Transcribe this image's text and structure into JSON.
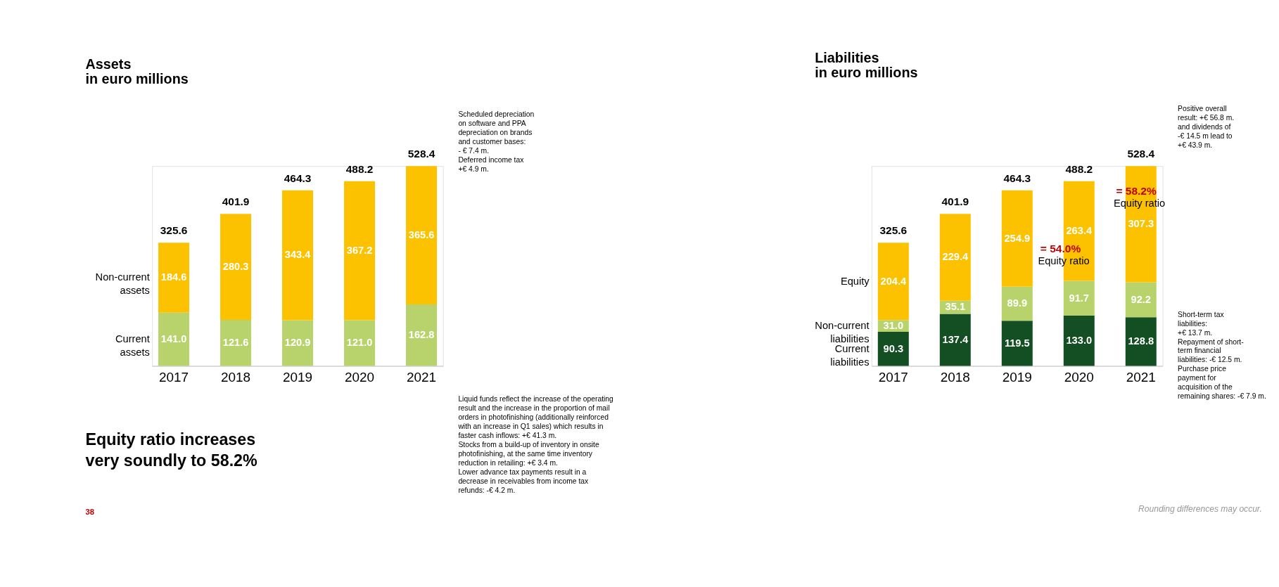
{
  "chart_data": [
    {
      "type": "bar",
      "title": "Assets\nin euro millions",
      "stacked": true,
      "categories": [
        "2017",
        "2018",
        "2019",
        "2020",
        "2021"
      ],
      "series": [
        {
          "name": "Current\nassets",
          "color": "#b8d36b",
          "values": [
            141.0,
            121.6,
            120.9,
            121.0,
            162.8
          ],
          "value_labels": [
            "141.0",
            "121.6",
            "120.9",
            "121.0",
            "162.8"
          ]
        },
        {
          "name": "Non-current\nassets",
          "color": "#fcc200",
          "values": [
            184.6,
            280.3,
            343.4,
            367.2,
            365.6
          ],
          "value_labels": [
            "184.6",
            "280.3",
            "343.4",
            "367.2",
            "365.6"
          ]
        }
      ],
      "totals": [
        "325.6",
        "401.9",
        "464.3",
        "488.2",
        "528.4"
      ],
      "annotations": [
        "Scheduled depreciation\non software and PPA\ndepreciation on brands\nand  customer bases:\n- € 7.4 m.\n\nDeferred income tax\n+€ 4.9 m.",
        "Liquid funds reflect the increase of the operating\nresult and the increase in the proportion of mail\norders in photofinishing (additionally reinforced\nwith an increase in Q1 sales) which results in\nfaster cash inflows: +€ 41.3 m.\n\nStocks from a build-up of inventory in onsite\nphotofinishing, at the same time inventory\nreduction in retailing: +€ 3.4 m.\n\nLower advance tax payments result in a\ndecrease in receivables from income tax\nrefunds: -€ 4.2 m.",
        "Equity ratio increases\nvery soundly to 58.2%",
        "38"
      ]
    },
    {
      "type": "bar",
      "title": "Liabilities\nin euro millions",
      "stacked": true,
      "categories": [
        "2017",
        "2018",
        "2019",
        "2020",
        "2021"
      ],
      "series": [
        {
          "name": "Current\nliabilities",
          "color": "#144f23",
          "values": [
            90.3,
            137.4,
            119.5,
            133.0,
            128.8
          ],
          "value_labels": [
            "90.3",
            "137.4",
            "119.5",
            "133.0",
            "128.8"
          ]
        },
        {
          "name": "Non-current\nliabilities",
          "color": "#b8d36b",
          "values": [
            31.0,
            35.1,
            89.9,
            91.7,
            92.2
          ],
          "value_labels": [
            "31.0",
            "35.1",
            "89.9",
            "91.7",
            "92.2"
          ]
        },
        {
          "name": "Equity",
          "color": "#fcc200",
          "values": [
            204.4,
            229.4,
            254.9,
            263.4,
            307.3
          ],
          "value_labels": [
            "204.4",
            "229.4",
            "254.9",
            "263.4",
            "307.3"
          ]
        }
      ],
      "totals": [
        "325.6",
        "401.9",
        "464.3",
        "488.2",
        "528.4"
      ],
      "annotations": [
        "= 54.0%\nEquity ratio",
        "= 58.2%\nEquity ratio",
        "Positive overall\nresult: +€ 56.8 m.\nand dividends of\n-€ 14.5 m lead to\n+€ 43.9 m.",
        "Short-term tax\nliabilities:\n +€ 13.7 m.\n\nRepayment of short-\nterm financial\nliabilities: -€ 12.5 m.\n\nPurchase price\npayment for\nacquisition of the\nremaining shares: -€ 7.9 m.",
        "Rounding differences may occur."
      ]
    }
  ]
}
